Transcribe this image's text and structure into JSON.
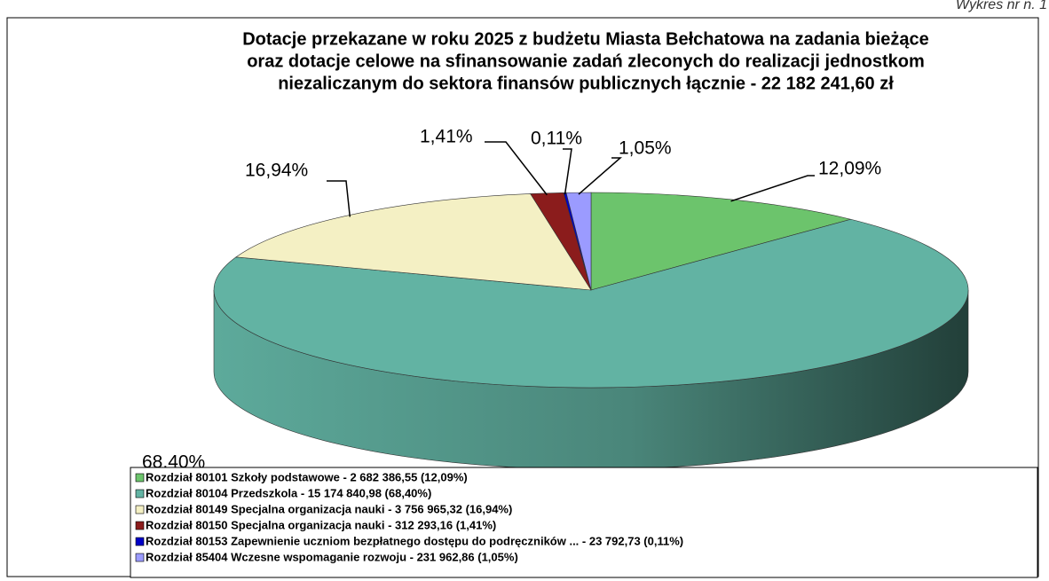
{
  "page_note": "Wykres nr n. 1",
  "chart_data": {
    "type": "pie",
    "title": [
      "Dotacje przekazane w roku 2025 z budżetu Miasta Bełchatowa na zadania bieżące",
      "oraz dotacje celowe na sfinansowanie zadań zleconych do realizacji jednostkom",
      "niezaliczanym do sektora finansów publicznych łącznie - 22 182 241,60 zł"
    ],
    "categories": [
      "Rozdział 80101 Szkoły podstawowe - 2 682 386,55 (12,09%)",
      "Rozdział 80104 Przedszkola - 15 174 840,98 (68,40%)",
      "Rozdział 80149 Specjalna organizacja nauki - 3 756 965,32 (16,94%)",
      "Rozdział 80150 Specjalna organizacja nauki - 312 293,16 (1,41%)",
      "Rozdział 80153 Zapewnienie uczniom bezpłatnego dostępu do podręczników ... - 23 792,73 (0,11%)",
      "Rozdział 85404 Wczesne wspomaganie rozwoju - 231 962,86 (1,05%)"
    ],
    "values": [
      12.09,
      68.4,
      16.94,
      1.41,
      0.11,
      1.05
    ],
    "value_labels": [
      "12,09%",
      "68,40%",
      "16,94%",
      "1,41%",
      "0,11%",
      "1,05%"
    ],
    "colors": [
      "#6cc46c",
      "#62b3a3",
      "#f4f0c4",
      "#8b1c1c",
      "#0000c8",
      "#9b9bff"
    ]
  }
}
